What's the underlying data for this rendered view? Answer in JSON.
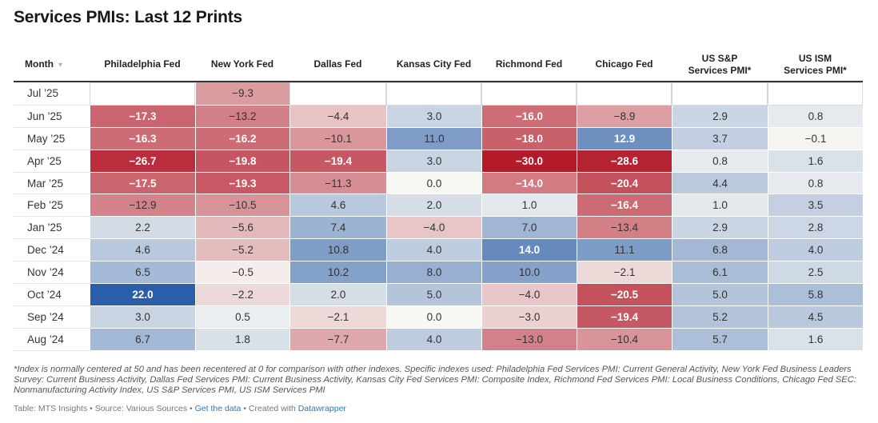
{
  "title": "Services PMIs: Last 12 Prints",
  "colors": {
    "neg_strong": "#b31b2b",
    "neutral": "#f7f7f4",
    "pos_strong": "#2b5ea8"
  },
  "chart_data": {
    "type": "table",
    "title": "Services PMIs: Last 12 Prints",
    "columns": [
      "Month",
      "Philadelphia Fed",
      "New York Fed",
      "Dallas Fed",
      "Kansas City Fed",
      "Richmond Fed",
      "Chicago Fed",
      "US S&P\nServices PMI*",
      "US ISM\nServices PMI*"
    ],
    "month_header": "Month",
    "series": [
      {
        "name": "Philadelphia Fed",
        "values": [
          null,
          -17.3,
          -16.3,
          -26.7,
          -17.5,
          -12.9,
          2.2,
          4.6,
          6.5,
          22.0,
          3.0,
          6.7
        ]
      },
      {
        "name": "New York Fed",
        "values": [
          -9.3,
          -13.2,
          -16.2,
          -19.8,
          -19.3,
          -10.5,
          -5.6,
          -5.2,
          -0.5,
          -2.2,
          0.5,
          1.8
        ]
      },
      {
        "name": "Dallas Fed",
        "values": [
          null,
          -4.4,
          -10.1,
          -19.4,
          -11.3,
          4.6,
          7.4,
          10.8,
          10.2,
          2.0,
          -2.1,
          -7.7
        ]
      },
      {
        "name": "Kansas City Fed",
        "values": [
          null,
          3.0,
          11.0,
          3.0,
          0.0,
          2.0,
          -4.0,
          4.0,
          8.0,
          5.0,
          0.0,
          4.0
        ]
      },
      {
        "name": "Richmond Fed",
        "values": [
          null,
          -16.0,
          -18.0,
          -30.0,
          -14.0,
          1.0,
          7.0,
          14.0,
          10.0,
          -4.0,
          -3.0,
          -13.0
        ]
      },
      {
        "name": "Chicago Fed",
        "values": [
          null,
          -8.9,
          12.9,
          -28.6,
          -20.4,
          -16.4,
          -13.4,
          11.1,
          -2.1,
          -20.5,
          -19.4,
          -10.4
        ]
      },
      {
        "name": "US S&P Services PMI*",
        "values": [
          null,
          2.9,
          3.7,
          0.8,
          4.4,
          1.0,
          2.9,
          6.8,
          6.1,
          5.0,
          5.2,
          5.7
        ]
      },
      {
        "name": "US ISM Services PMI*",
        "values": [
          null,
          0.8,
          -0.1,
          1.6,
          0.8,
          3.5,
          2.8,
          4.0,
          2.5,
          5.8,
          4.5,
          1.6
        ]
      }
    ],
    "months": [
      "Jul ’25",
      "Jun ’25",
      "May ’25",
      "Apr ’25",
      "Mar ’25",
      "Feb ’25",
      "Jan ’25",
      "Dec ’24",
      "Nov ’24",
      "Oct ’24",
      "Sep ’24",
      "Aug ’24"
    ],
    "color_scale": {
      "min": -30,
      "mid": 0,
      "max": 22
    }
  },
  "footnote": "*Index is normally centered at 50 and has been recentered at 0 for comparison with other indexes. Specific indexes used: Philadelphia Fed Services PMI: Current General Activity, New York Fed Business Leaders Survey: Current Business Activity, Dallas Fed Services PMI: Current Business Activity, Kansas City Fed Services PMI: Composite Index, Richmond Fed Services PMI: Local Business Conditions, Chicago Fed SEC: Nonmanufacturing Activity Index, US S&P Services PMI, US ISM Services PMI",
  "credit": {
    "table_label": "Table: MTS Insights",
    "source_label": "Source: Various Sources",
    "get_data_label": "Get the data",
    "created_label": "Created with",
    "tool_label": "Datawrapper",
    "separator": " • "
  }
}
